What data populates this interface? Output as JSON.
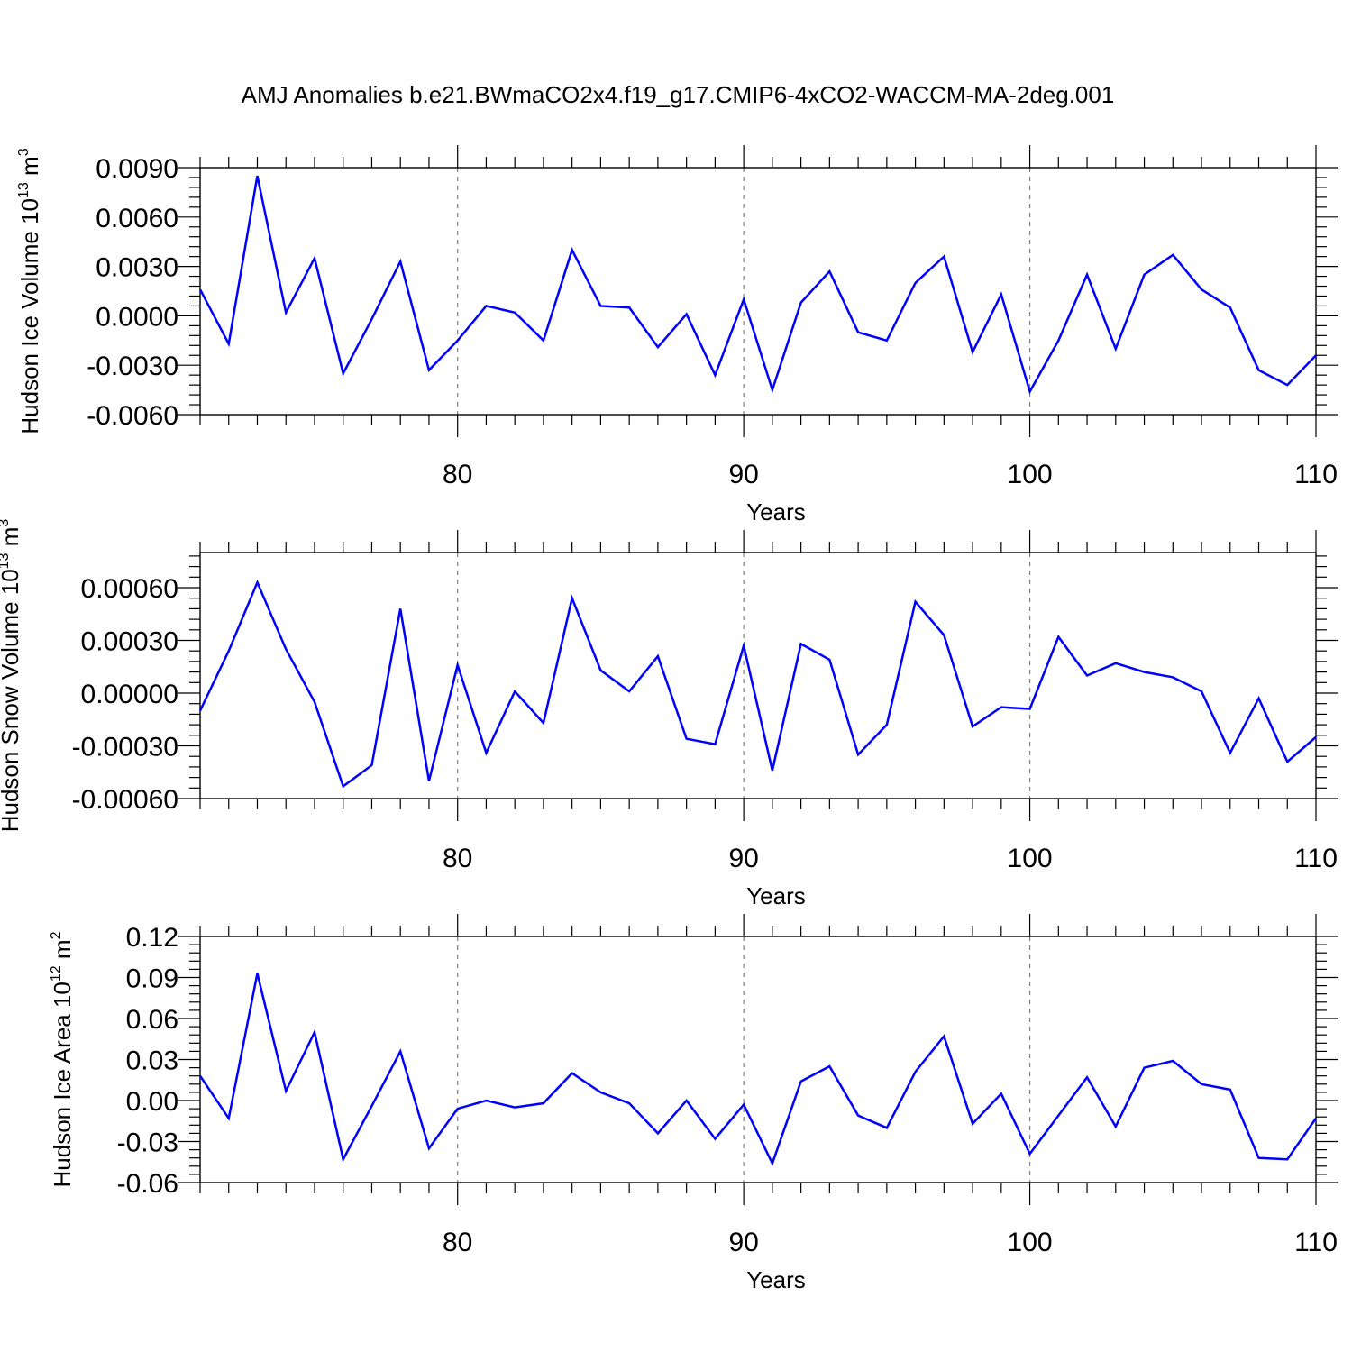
{
  "title": "AMJ Anomalies b.e21.BWmaCO2x4.f19_g17.CMIP6-4xCO2-WACCM-MA-2deg.001",
  "line_color": "#0000ff",
  "chart_data": [
    {
      "type": "line",
      "title": "AMJ Anomalies b.e21.BWmaCO2x4.f19_g17.CMIP6-4xCO2-WACCM-MA-2deg.001",
      "xlabel": "Years",
      "ylabel": "Hudson Ice Volume 10",
      "ylabel_exp": "13",
      "ylabel_unit": " m",
      "ylabel_unit_exp": "3",
      "xlim": [
        71,
        110
      ],
      "ylim": [
        -0.006,
        0.009
      ],
      "xticks": [
        80,
        90,
        100,
        110
      ],
      "xticklabels": [
        "80",
        "90",
        "100",
        "110"
      ],
      "yticks": [
        -0.006,
        -0.003,
        0.0,
        0.003,
        0.006,
        0.009
      ],
      "yticklabels": [
        "-0.0060",
        "-0.0030",
        "0.0000",
        "0.0030",
        "0.0060",
        "0.0090"
      ],
      "grid_x": [
        80,
        90,
        100
      ],
      "x": [
        71,
        72,
        73,
        74,
        75,
        76,
        77,
        78,
        79,
        80,
        81,
        82,
        83,
        84,
        85,
        86,
        87,
        88,
        89,
        90,
        91,
        92,
        93,
        94,
        95,
        96,
        97,
        98,
        99,
        100,
        101,
        102,
        103,
        104,
        105,
        106,
        107,
        108,
        109,
        110
      ],
      "series": [
        {
          "values": [
            0.0016,
            -0.0017,
            0.0085,
            0.0002,
            0.0035,
            -0.0035,
            -0.0002,
            0.0033,
            -0.0033,
            -0.0015,
            0.0006,
            0.0002,
            -0.0015,
            0.004,
            0.0006,
            0.0005,
            -0.0019,
            0.0001,
            -0.0036,
            0.001,
            -0.0045,
            0.0008,
            0.0027,
            -0.001,
            -0.0015,
            0.002,
            0.0036,
            -0.0022,
            0.0013,
            -0.0046,
            -0.0015,
            0.0025,
            -0.002,
            0.0025,
            0.0037,
            0.0016,
            0.0005,
            -0.0033,
            -0.0042,
            -0.0024
          ]
        }
      ]
    },
    {
      "type": "line",
      "xlabel": "Years",
      "ylabel": "Hudson Snow Volume 10",
      "ylabel_exp": "13",
      "ylabel_unit": " m",
      "ylabel_unit_exp": "3",
      "xlim": [
        71,
        110
      ],
      "ylim": [
        -0.0006,
        0.0008
      ],
      "xticks": [
        80,
        90,
        100,
        110
      ],
      "xticklabels": [
        "80",
        "90",
        "100",
        "110"
      ],
      "yticks": [
        -0.0006,
        -0.0003,
        0.0,
        0.0003,
        0.0006
      ],
      "yticklabels": [
        "-0.00060",
        "-0.00030",
        "0.00000",
        "0.00030",
        "0.00060"
      ],
      "grid_x": [
        80,
        90,
        100
      ],
      "x": [
        71,
        72,
        73,
        74,
        75,
        76,
        77,
        78,
        79,
        80,
        81,
        82,
        83,
        84,
        85,
        86,
        87,
        88,
        89,
        90,
        91,
        92,
        93,
        94,
        95,
        96,
        97,
        98,
        99,
        100,
        101,
        102,
        103,
        104,
        105,
        106,
        107,
        108,
        109,
        110
      ],
      "series": [
        {
          "values": [
            -0.0001,
            0.00024,
            0.00063,
            0.00025,
            -5e-05,
            -0.00053,
            -0.00041,
            0.00048,
            -0.0005,
            0.00016,
            -0.00034,
            1e-05,
            -0.00017,
            0.00054,
            0.00013,
            1e-05,
            0.00021,
            -0.00026,
            -0.00029,
            0.00027,
            -0.00044,
            0.00028,
            0.00019,
            -0.00035,
            -0.00018,
            0.00052,
            0.00033,
            -0.00019,
            -8e-05,
            -9e-05,
            0.00032,
            0.0001,
            0.00017,
            0.00012,
            9e-05,
            1e-05,
            -0.00034,
            -3e-05,
            -0.00039,
            -0.00025
          ]
        }
      ]
    },
    {
      "type": "line",
      "xlabel": "Years",
      "ylabel": "Hudson Ice Area 10",
      "ylabel_exp": "12",
      "ylabel_unit": " m",
      "ylabel_unit_exp": "2",
      "xlim": [
        71,
        110
      ],
      "ylim": [
        -0.06,
        0.12
      ],
      "xticks": [
        80,
        90,
        100,
        110
      ],
      "xticklabels": [
        "80",
        "90",
        "100",
        "110"
      ],
      "yticks": [
        -0.06,
        -0.03,
        0.0,
        0.03,
        0.06,
        0.09,
        0.12
      ],
      "yticklabels": [
        "-0.06",
        "-0.03",
        "0.00",
        "0.03",
        "0.06",
        "0.09",
        "0.12"
      ],
      "grid_x": [
        80,
        90,
        100
      ],
      "x": [
        71,
        72,
        73,
        74,
        75,
        76,
        77,
        78,
        79,
        80,
        81,
        82,
        83,
        84,
        85,
        86,
        87,
        88,
        89,
        90,
        91,
        92,
        93,
        94,
        95,
        96,
        97,
        98,
        99,
        100,
        101,
        102,
        103,
        104,
        105,
        106,
        107,
        108,
        109,
        110
      ],
      "series": [
        {
          "values": [
            0.018,
            -0.013,
            0.093,
            0.007,
            0.05,
            -0.043,
            -0.004,
            0.036,
            -0.035,
            -0.006,
            0.0,
            -0.005,
            -0.002,
            0.02,
            0.006,
            -0.002,
            -0.024,
            0.0,
            -0.028,
            -0.003,
            -0.046,
            0.014,
            0.025,
            -0.011,
            -0.02,
            0.021,
            0.047,
            -0.017,
            0.005,
            -0.039,
            -0.011,
            0.017,
            -0.019,
            0.024,
            0.029,
            0.012,
            0.008,
            -0.042,
            -0.043,
            -0.013
          ]
        }
      ]
    }
  ]
}
